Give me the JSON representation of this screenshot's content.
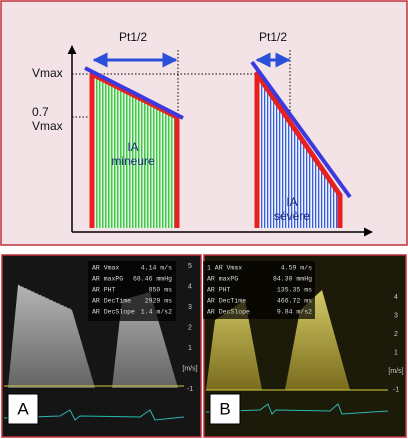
{
  "diagram": {
    "pt_half_left": "Pt1/2",
    "pt_half_right": "Pt1/2",
    "vmax": "Vmax",
    "vmax07": [
      "0.7",
      "Vmax"
    ],
    "mild": [
      "IA",
      "mineure"
    ],
    "severe": [
      "IA",
      "sévère"
    ]
  },
  "panels": [
    {
      "label": "A",
      "measurements": [
        [
          "AR Vmax",
          "4.14 m/s"
        ],
        [
          "AR maxPG",
          "68.46 mmHg"
        ],
        [
          "AR PHT",
          "850 ms"
        ],
        [
          "AR DecTime",
          "2929 ms"
        ],
        [
          "AR DecSlope",
          "1.4 m/s2"
        ]
      ],
      "scale": [
        "5",
        "4",
        "3",
        "2",
        "1",
        "[m/s]",
        "-1"
      ]
    },
    {
      "label": "B",
      "measurements": [
        [
          "1 AR Vmax",
          "4.59 m/s"
        ],
        [
          "AR maxPG",
          "84.30 mmHg"
        ],
        [
          "AR PHT",
          "135.35 ms"
        ],
        [
          "AR DecTime",
          "466.72 ms"
        ],
        [
          "AR DecSlope",
          "9.84 m/s2"
        ]
      ],
      "scale": [
        "4",
        "3",
        "2",
        "1",
        "[m/s]",
        "-1"
      ]
    }
  ]
}
